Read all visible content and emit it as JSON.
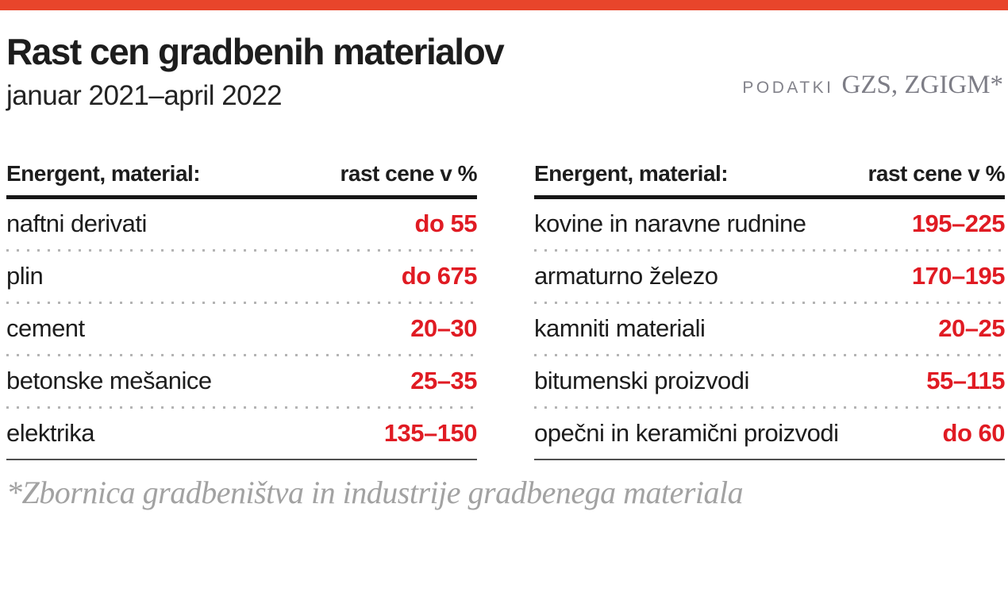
{
  "colors": {
    "accent": "#e8452b",
    "value": "#e01b23",
    "ink": "#1d1d1d",
    "sourcegray": "#83838b",
    "footgray": "#a2a2a2"
  },
  "header": {
    "title": "Rast cen gradbenih materialov",
    "subtitle": "januar 2021–april 2022",
    "source_label": "podatki",
    "source_value": "GZS, ZGIGM*"
  },
  "tables": [
    {
      "col_material": "Energent, material:",
      "col_value": "rast cene v %",
      "rows": [
        {
          "label": "naftni derivati",
          "value": "do 55"
        },
        {
          "label": "plin",
          "value": "do 675"
        },
        {
          "label": "cement",
          "value": "20–30"
        },
        {
          "label": "betonske mešanice",
          "value": "25–35"
        },
        {
          "label": "elektrika",
          "value": "135–150"
        }
      ]
    },
    {
      "col_material": "Energent, material:",
      "col_value": "rast cene v %",
      "rows": [
        {
          "label": "kovine in naravne rudnine",
          "value": "195–225"
        },
        {
          "label": "armaturno železo",
          "value": "170–195"
        },
        {
          "label": "kamniti materiali",
          "value": "20–25"
        },
        {
          "label": "bitumenski proizvodi",
          "value": "55–115"
        },
        {
          "label": "opečni in keramični proizvodi",
          "value": "do 60"
        }
      ]
    }
  ],
  "footnote": "*Zbornica gradbeništva in industrije gradbenega materiala",
  "chart_data": {
    "type": "table",
    "title": "Rast cen gradbenih materialov",
    "subtitle": "januar 2021–april 2022",
    "source": "GZS, ZGIGM (Zbornica gradbeništva in industrije gradbenega materiala)",
    "columns": [
      "Energent, material:",
      "rast cene v %"
    ],
    "rows": [
      [
        "naftni derivati",
        "do 55"
      ],
      [
        "plin",
        "do 675"
      ],
      [
        "cement",
        "20–30"
      ],
      [
        "betonske mešanice",
        "25–35"
      ],
      [
        "elektrika",
        "135–150"
      ],
      [
        "kovine in naravne rudnine",
        "195–225"
      ],
      [
        "armaturno železo",
        "170–195"
      ],
      [
        "kamniti materiali",
        "20–25"
      ],
      [
        "bitumenski proizvodi",
        "55–115"
      ],
      [
        "opečni in keramični proizvodi",
        "do 60"
      ]
    ]
  }
}
